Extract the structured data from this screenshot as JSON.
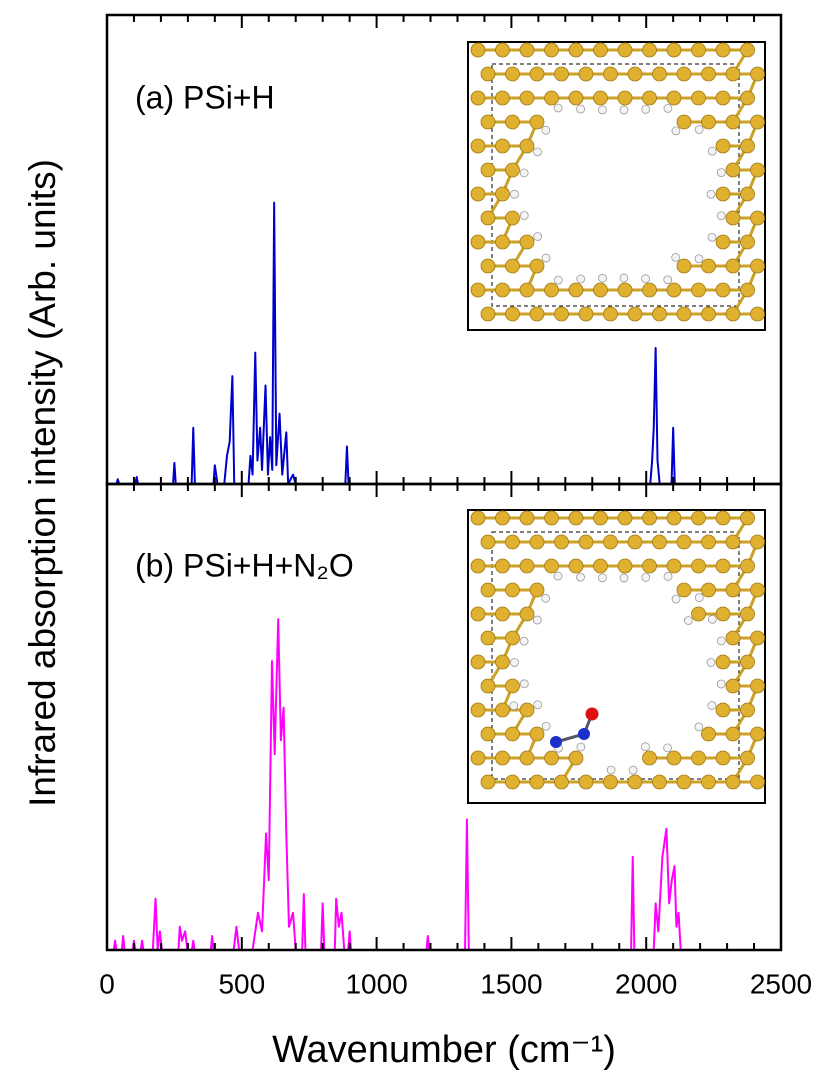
{
  "chart_data": [
    {
      "type": "line",
      "label": "(a) PSi+H",
      "ylabel": "Infrared absorption intensity (Arb. units)",
      "color": "#0000cc",
      "xlim": [
        0,
        2500
      ],
      "ylim": [
        0,
        1
      ],
      "xticks": [
        0,
        500,
        1000,
        1500,
        2000,
        2500
      ],
      "xminorticks": [
        100,
        200,
        300,
        400,
        600,
        700,
        800,
        900,
        1100,
        1200,
        1300,
        1400,
        1600,
        1700,
        1800,
        1900,
        2100,
        2200,
        2300,
        2400
      ],
      "x": [
        0,
        35,
        40,
        45,
        105,
        110,
        115,
        245,
        250,
        255,
        314,
        320,
        326,
        395,
        400,
        410,
        435,
        445,
        455,
        465,
        472,
        525,
        532,
        540,
        550,
        558,
        568,
        575,
        588,
        597,
        605,
        613,
        620,
        628,
        640,
        650,
        665,
        672,
        690,
        700,
        884,
        890,
        896,
        2015,
        2022,
        2028,
        2035,
        2042,
        2050,
        2094,
        2100,
        2106,
        2500
      ],
      "values": [
        0,
        0,
        0.01,
        0,
        0,
        0.015,
        0,
        0,
        0.045,
        0,
        0,
        0.12,
        0,
        0,
        0.04,
        0,
        0,
        0.06,
        0.09,
        0.23,
        0,
        0,
        0.06,
        0.02,
        0.28,
        0.05,
        0.12,
        0.03,
        0.21,
        0.02,
        0.1,
        0.03,
        0.6,
        0.04,
        0.15,
        0.02,
        0.11,
        0,
        0.02,
        0,
        0,
        0.08,
        0,
        0,
        0.05,
        0.12,
        0.29,
        0.05,
        0,
        0,
        0.12,
        0,
        0
      ]
    },
    {
      "type": "line",
      "label": "(b) PSi+H+N₂O",
      "xlabel": "Wavenumber (cm⁻¹)",
      "color": "#ff00ff",
      "xlim": [
        0,
        2500
      ],
      "ylim": [
        0,
        1
      ],
      "xticks": [
        0,
        500,
        1000,
        1500,
        2000,
        2500
      ],
      "xminorticks": [
        100,
        200,
        300,
        400,
        600,
        700,
        800,
        900,
        1100,
        1200,
        1300,
        1400,
        1600,
        1700,
        1800,
        1900,
        2100,
        2200,
        2300,
        2400
      ],
      "x": [
        0,
        25,
        30,
        35,
        55,
        60,
        65,
        95,
        100,
        105,
        125,
        130,
        135,
        170,
        180,
        188,
        196,
        204,
        265,
        270,
        278,
        290,
        298,
        315,
        320,
        325,
        385,
        390,
        395,
        470,
        480,
        490,
        540,
        560,
        575,
        590,
        600,
        612,
        622,
        635,
        645,
        655,
        665,
        675,
        690,
        700,
        724,
        730,
        736,
        794,
        800,
        806,
        845,
        850,
        860,
        870,
        880,
        895,
        900,
        905,
        1185,
        1190,
        1195,
        1328,
        1335,
        1342,
        1944,
        1950,
        1956,
        2028,
        2035,
        2045,
        2060,
        2075,
        2085,
        2095,
        2105,
        2112,
        2120,
        2128,
        2500
      ],
      "values": [
        0,
        0,
        0.02,
        0,
        0,
        0.03,
        0,
        0,
        0.02,
        0,
        0,
        0.02,
        0,
        0,
        0.11,
        0,
        0.04,
        0,
        0,
        0.05,
        0.02,
        0.04,
        0,
        0,
        0.02,
        0,
        0,
        0.03,
        0,
        0,
        0.05,
        0,
        0,
        0.08,
        0.04,
        0.25,
        0.15,
        0.62,
        0.42,
        0.71,
        0.45,
        0.52,
        0.25,
        0.05,
        0.08,
        0,
        0,
        0.12,
        0,
        0,
        0.1,
        0,
        0,
        0.11,
        0.05,
        0.08,
        0,
        0,
        0.04,
        0,
        0,
        0.03,
        0,
        0,
        0.28,
        0,
        0,
        0.2,
        0,
        0,
        0.1,
        0.04,
        0.2,
        0.26,
        0.1,
        0.15,
        0.18,
        0.05,
        0.08,
        0,
        0
      ]
    }
  ]
}
